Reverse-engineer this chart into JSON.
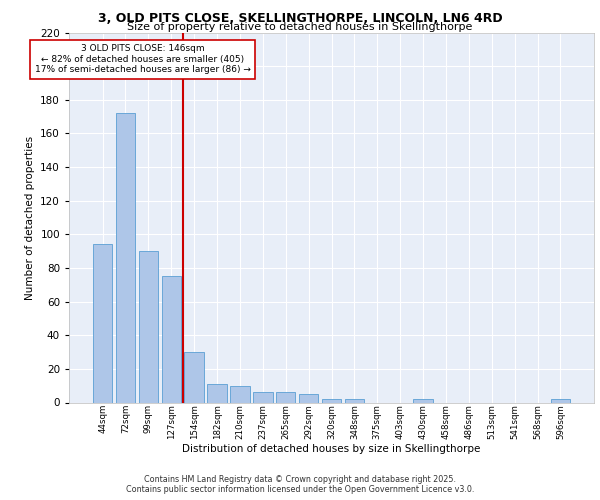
{
  "title1": "3, OLD PITS CLOSE, SKELLINGTHORPE, LINCOLN, LN6 4RD",
  "title2": "Size of property relative to detached houses in Skellingthorpe",
  "xlabel": "Distribution of detached houses by size in Skellingthorpe",
  "ylabel": "Number of detached properties",
  "categories": [
    "44sqm",
    "72sqm",
    "99sqm",
    "127sqm",
    "154sqm",
    "182sqm",
    "210sqm",
    "237sqm",
    "265sqm",
    "292sqm",
    "320sqm",
    "348sqm",
    "375sqm",
    "403sqm",
    "430sqm",
    "458sqm",
    "486sqm",
    "513sqm",
    "541sqm",
    "568sqm",
    "596sqm"
  ],
  "values": [
    94,
    172,
    90,
    75,
    30,
    11,
    10,
    6,
    6,
    5,
    2,
    2,
    0,
    0,
    2,
    0,
    0,
    0,
    0,
    0,
    2
  ],
  "bar_color": "#aec6e8",
  "bar_edge_color": "#5a9fd4",
  "vline_color": "#cc0000",
  "annotation_text": "3 OLD PITS CLOSE: 146sqm\n← 82% of detached houses are smaller (405)\n17% of semi-detached houses are larger (86) →",
  "annotation_box_color": "#ffffff",
  "annotation_box_edge": "#cc0000",
  "ylim": [
    0,
    220
  ],
  "yticks": [
    0,
    20,
    40,
    60,
    80,
    100,
    120,
    140,
    160,
    180,
    200,
    220
  ],
  "background_color": "#e8eef8",
  "grid_color": "#ffffff",
  "footer1": "Contains HM Land Registry data © Crown copyright and database right 2025.",
  "footer2": "Contains public sector information licensed under the Open Government Licence v3.0."
}
